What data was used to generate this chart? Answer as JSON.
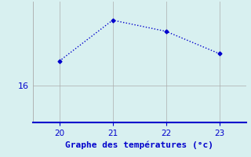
{
  "x": [
    20,
    21,
    22,
    23
  ],
  "y": [
    17.3,
    19.5,
    18.9,
    17.7
  ],
  "xlabel": "Graphe des températures (°c)",
  "yticks": [
    16
  ],
  "xticks": [
    20,
    21,
    22,
    23
  ],
  "xlim": [
    19.5,
    23.5
  ],
  "ylim": [
    14.0,
    20.5
  ],
  "bg_color": "#d8f0f0",
  "line_color": "#0000cc",
  "grid_color": "#aaaaaa",
  "axis_color": "#0000cc",
  "label_color": "#0000cc",
  "markersize": 2.5,
  "linewidth": 1.0
}
